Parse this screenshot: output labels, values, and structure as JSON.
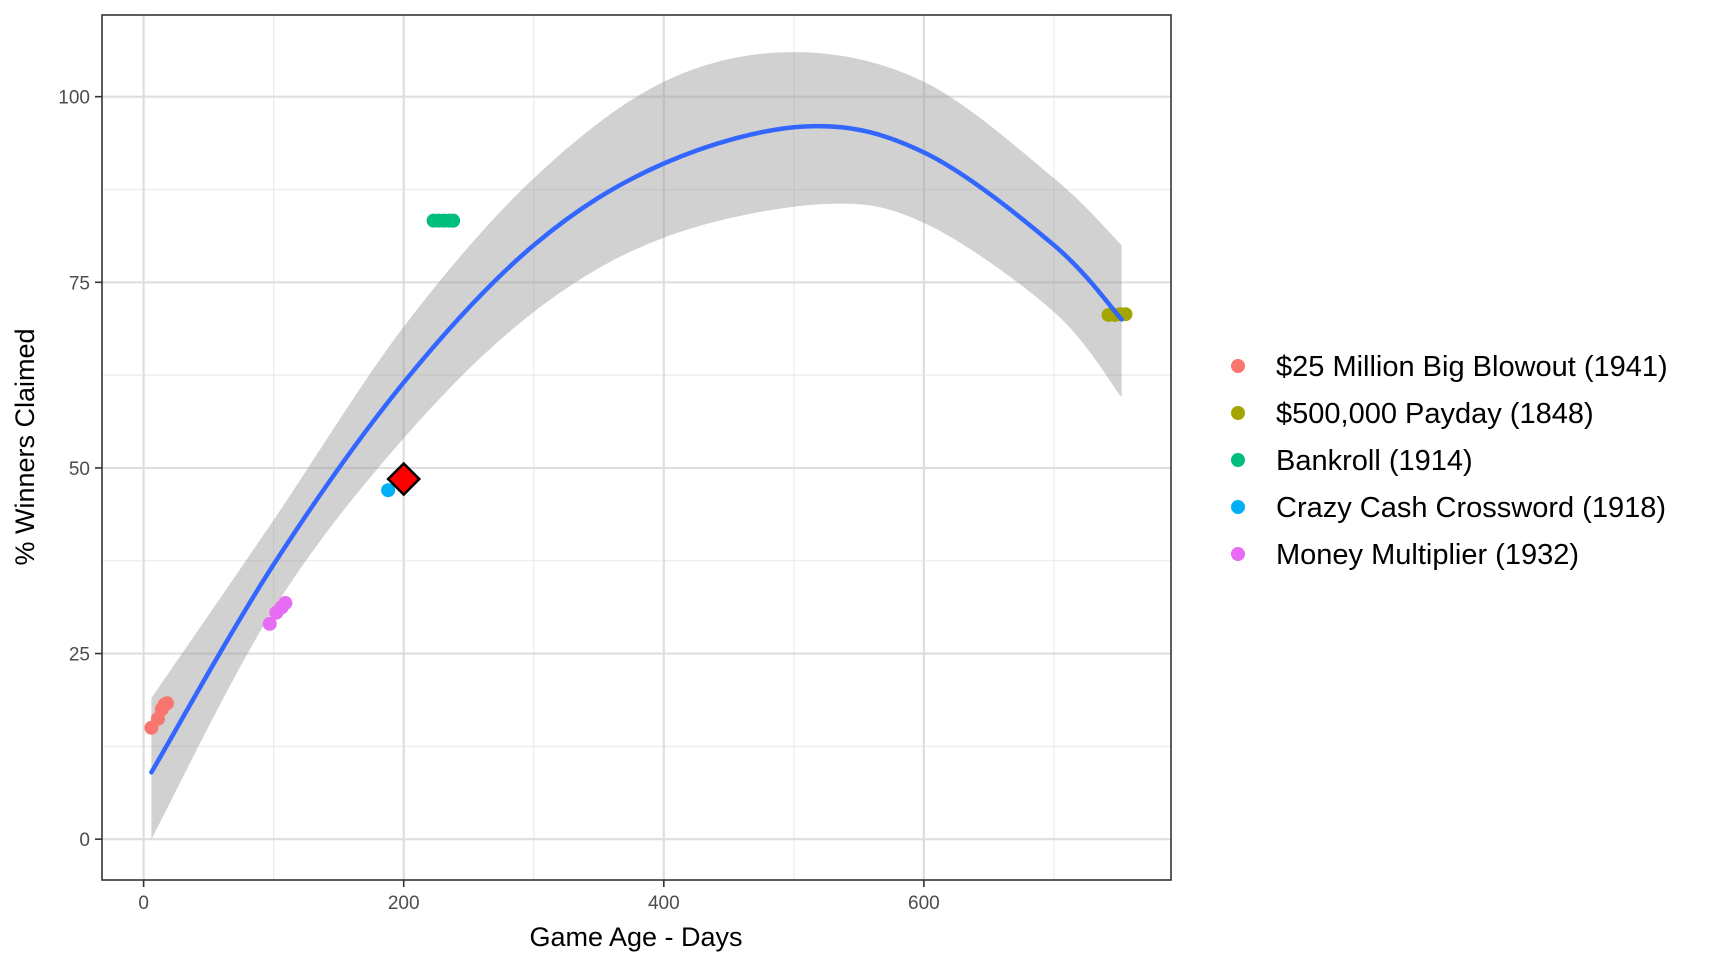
{
  "chart_data": {
    "type": "scatter",
    "xlabel": "Game Age - Days",
    "ylabel": "% Winners Claimed",
    "xlim": [
      -32,
      790
    ],
    "ylim": [
      -5.5,
      111
    ],
    "x_ticks": [
      0,
      200,
      400,
      600
    ],
    "y_ticks": [
      0,
      25,
      50,
      75,
      100
    ],
    "grid": true,
    "legend_position": "right",
    "series": [
      {
        "name": "$25 Million Big Blowout (1941)",
        "color": "#F8766D",
        "points": [
          {
            "x": 6,
            "y": 15
          },
          {
            "x": 11,
            "y": 16.2
          },
          {
            "x": 14,
            "y": 17.5
          },
          {
            "x": 16,
            "y": 18.1
          },
          {
            "x": 18,
            "y": 18.3
          }
        ]
      },
      {
        "name": "$500,000 Payday (1848)",
        "color": "#A3A500",
        "points": [
          {
            "x": 742,
            "y": 70.6
          },
          {
            "x": 747,
            "y": 70.6
          },
          {
            "x": 751,
            "y": 70.7
          },
          {
            "x": 755,
            "y": 70.7
          }
        ]
      },
      {
        "name": "Bankroll (1914)",
        "color": "#00BF7D",
        "points": [
          {
            "x": 223,
            "y": 83.3
          },
          {
            "x": 227,
            "y": 83.3
          },
          {
            "x": 231,
            "y": 83.3
          },
          {
            "x": 235,
            "y": 83.3
          },
          {
            "x": 238,
            "y": 83.3
          }
        ]
      },
      {
        "name": "Crazy Cash Crossword (1918)",
        "color": "#00B0F6",
        "points": [
          {
            "x": 188,
            "y": 47
          }
        ]
      },
      {
        "name": "Money Multiplier (1932)",
        "color": "#E76BF3",
        "points": [
          {
            "x": 97,
            "y": 29
          },
          {
            "x": 102,
            "y": 30.5
          },
          {
            "x": 106,
            "y": 31.2
          },
          {
            "x": 109,
            "y": 31.8
          }
        ]
      }
    ],
    "highlight_point": {
      "x": 200,
      "y": 48.5,
      "color": "#FF0000",
      "shape": "diamond"
    },
    "fit_curve": {
      "color": "#3366FF",
      "points": [
        {
          "x": 6,
          "y": 9
        },
        {
          "x": 100,
          "y": 37
        },
        {
          "x": 200,
          "y": 61.5
        },
        {
          "x": 300,
          "y": 80
        },
        {
          "x": 400,
          "y": 91
        },
        {
          "x": 510,
          "y": 96
        },
        {
          "x": 600,
          "y": 92.5
        },
        {
          "x": 700,
          "y": 80
        },
        {
          "x": 752,
          "y": 70
        }
      ]
    },
    "confidence_band": {
      "color": "#999999",
      "upper": [
        {
          "x": 6,
          "y": 19
        },
        {
          "x": 100,
          "y": 43
        },
        {
          "x": 200,
          "y": 69
        },
        {
          "x": 300,
          "y": 89
        },
        {
          "x": 400,
          "y": 102
        },
        {
          "x": 500,
          "y": 106
        },
        {
          "x": 600,
          "y": 102
        },
        {
          "x": 700,
          "y": 89
        },
        {
          "x": 752,
          "y": 80
        }
      ],
      "lower": [
        {
          "x": 6,
          "y": 0
        },
        {
          "x": 100,
          "y": 31
        },
        {
          "x": 200,
          "y": 54
        },
        {
          "x": 300,
          "y": 71
        },
        {
          "x": 400,
          "y": 81
        },
        {
          "x": 520,
          "y": 85.5
        },
        {
          "x": 600,
          "y": 83
        },
        {
          "x": 700,
          "y": 71
        },
        {
          "x": 752,
          "y": 59.5
        }
      ]
    }
  }
}
